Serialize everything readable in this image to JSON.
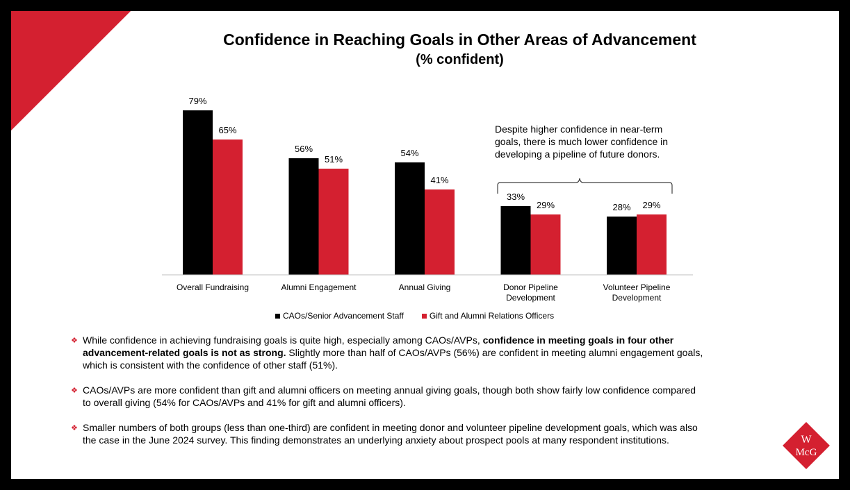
{
  "title": "Confidence in Reaching Goals in Other Areas of Advancement",
  "subtitle": "(% confident)",
  "colors": {
    "series1": "#000000",
    "series2": "#d42030",
    "accent": "#d42030"
  },
  "chart_data": {
    "type": "bar",
    "title": "Confidence in Reaching Goals in Other Areas of Advancement",
    "subtitle": "(% confident)",
    "categories": [
      [
        "Overall Fundraising"
      ],
      [
        "Alumni Engagement"
      ],
      [
        "Annual Giving"
      ],
      [
        "Donor Pipeline",
        "Development"
      ],
      [
        "Volunteer Pipeline",
        "Development"
      ]
    ],
    "series": [
      {
        "name": "CAOs/Senior Advancement Staff",
        "color": "#000000",
        "values": [
          79,
          56,
          54,
          33,
          28
        ],
        "labels": [
          "79%",
          "56%",
          "54%",
          "33%",
          "28%"
        ]
      },
      {
        "name": "Gift and Alumni Relations Officers",
        "color": "#d42030",
        "values": [
          65,
          51,
          41,
          29,
          29
        ],
        "labels": [
          "65%",
          "51%",
          "41%",
          "29%",
          "29%"
        ]
      }
    ],
    "ylim": [
      0,
      100
    ],
    "grid": false,
    "legend_position": "bottom",
    "xlabel": "",
    "ylabel": ""
  },
  "annotation": "Despite higher confidence in near-term goals, there is much lower confidence in developing a pipeline of future donors.",
  "legend": {
    "item1": "CAOs/Senior Advancement Staff",
    "item2": "Gift and Alumni Relations Officers"
  },
  "bullets": [
    {
      "pre": "While confidence in achieving fundraising goals is quite high, especially among CAOs/AVPs, ",
      "bold": "confidence in meeting goals in four other advancement-related goals is not as strong.",
      "post": " Slightly more than half of CAOs/AVPs (56%) are confident in meeting alumni engagement goals, which is consistent with the confidence of other staff (51%)."
    },
    {
      "pre": "CAOs/AVPs are more confident than gift and alumni officers on meeting annual giving goals, though both show fairly low confidence compared to overall giving (54% for CAOs/AVPs and 41% for gift and alumni officers).",
      "bold": "",
      "post": ""
    },
    {
      "pre": "Smaller numbers of both groups (less than one-third) are confident in meeting donor and volunteer pipeline development goals, which was also the case in the June 2024 survey. This finding demonstrates an underlying anxiety about prospect pools at many respondent institutions.",
      "bold": "",
      "post": ""
    }
  ],
  "bullet_symbol": "❖",
  "logo": {
    "line1": "W",
    "line2": "McG"
  }
}
